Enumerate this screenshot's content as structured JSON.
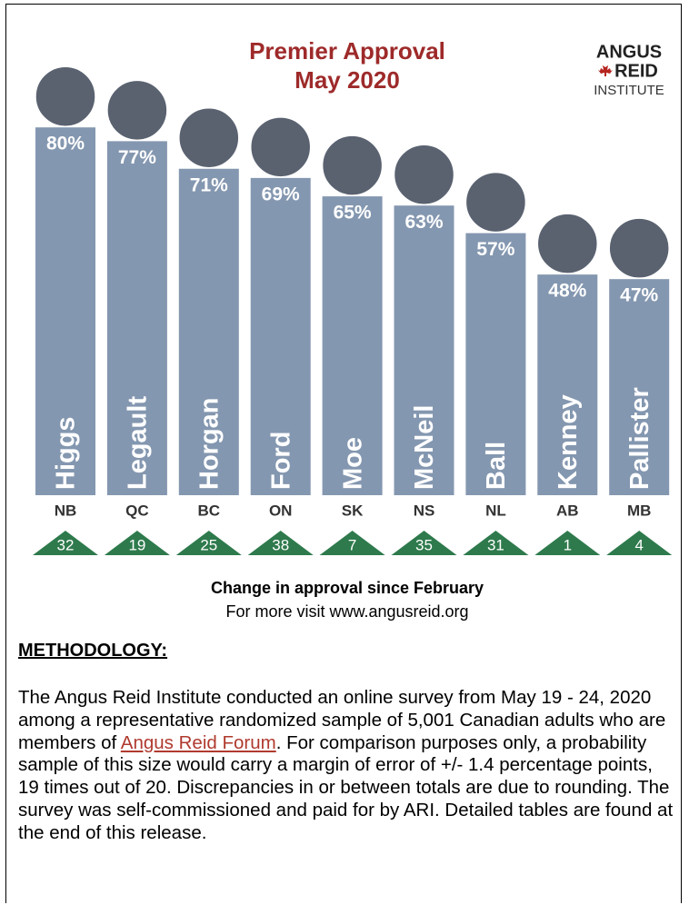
{
  "chart_data": {
    "type": "bar",
    "title": "Premier Approval",
    "subtitle": "May 2020",
    "logo": {
      "line1": "ANGUS",
      "line2": "REID",
      "line3": "INSTITUTE"
    },
    "categories": [
      "Higgs",
      "Legault",
      "Horgan",
      "Ford",
      "Moe",
      "McNeil",
      "Ball",
      "Kenney",
      "Pallister"
    ],
    "provinces": [
      "NB",
      "QC",
      "BC",
      "ON",
      "SK",
      "NS",
      "NL",
      "AB",
      "MB"
    ],
    "values": [
      80,
      77,
      71,
      69,
      65,
      63,
      57,
      48,
      47
    ],
    "value_labels": [
      "80%",
      "77%",
      "71%",
      "69%",
      "65%",
      "63%",
      "57%",
      "48%",
      "47%"
    ],
    "changes": [
      32,
      19,
      25,
      38,
      7,
      35,
      31,
      1,
      4
    ],
    "color": "#8497b0",
    "change_color": "#2e7a4c",
    "caption": "Change in approval since February",
    "note": "For more visit www.angusreid.org"
  },
  "methodology": {
    "heading": "METHODOLOGY:",
    "text_before": "The Angus Reid Institute conducted an online survey from May 19 - 24, 2020 among a representative randomized sample of 5,001 Canadian adults who are members of ",
    "link": "Angus Reid Forum",
    "text_after": ". For comparison purposes only, a probability sample of this size would carry a margin of error of +/- 1.4 percentage points, 19 times out of 20. Discrepancies in or between totals are due to rounding. The survey was self-commissioned and paid for by ARI. Detailed tables are found at the end of this release."
  }
}
